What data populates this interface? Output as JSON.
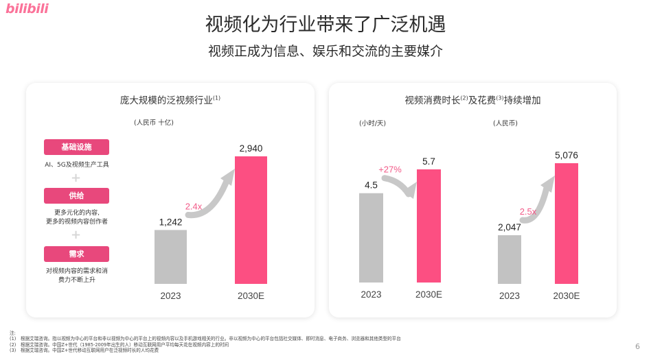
{
  "logo": "bilibili",
  "title": "视频化为行业带来了广泛机遇",
  "subtitle": "视频正成为信息、娱乐和交流的主要媒介",
  "colors": {
    "accent": "#fc4f82",
    "pill": "#e8487c",
    "gray": "#c2c2c2",
    "growth": "#f25a88",
    "arrow": "#c8c8c8"
  },
  "left_card": {
    "title": "庞大规模的泛视频行业",
    "title_note": "(1)",
    "unit": "(人民币 十亿)",
    "pillars": [
      {
        "label": "基础设施",
        "desc": "AI、5G及视频生产工具"
      },
      {
        "label": "供给",
        "desc": "更多元化的内容,\n更多的视频内容创作者"
      },
      {
        "label": "需求",
        "desc": "对视频内容的需求和消\n费力不断上升"
      }
    ],
    "plus": "+"
  },
  "right_card": {
    "title_part1": "视频消费时长",
    "note1": "(2)",
    "title_part2": "及花费",
    "note2": "(3)",
    "title_part3": "持续增加",
    "unit_time": "(小时/天)",
    "unit_spend": "(人民币)"
  },
  "chart_data": [
    {
      "type": "bar",
      "title": "庞大规模的泛视频行业",
      "ylabel": "(人民币 十亿)",
      "categories": [
        "2023",
        "2030E"
      ],
      "values": [
        1242,
        2940
      ],
      "labels": [
        "1,242",
        "2,940"
      ],
      "growth": "2.4x",
      "ylim": [
        0,
        3000
      ]
    },
    {
      "type": "bar",
      "title": "视频消费时长",
      "ylabel": "(小时/天)",
      "categories": [
        "2023",
        "2030E"
      ],
      "values": [
        4.5,
        5.7
      ],
      "labels": [
        "4.5",
        "5.7"
      ],
      "growth": "+27%",
      "ylim": [
        0,
        6
      ]
    },
    {
      "type": "bar",
      "title": "花费",
      "ylabel": "(人民币)",
      "categories": [
        "2023",
        "2030E"
      ],
      "values": [
        2047,
        5076
      ],
      "labels": [
        "2,047",
        "5,076"
      ],
      "growth": "2.5x",
      "ylim": [
        0,
        5100
      ]
    }
  ],
  "footnotes": {
    "heading": "注:",
    "items": [
      {
        "num": "(1)",
        "text": "根据艾瑞咨询。指以视频为中心的平台和非以视频为中心的平台上的视频内容以及手机游戏相关的行业。非以视频为中心的平台包括社交媒体、即时消息、电子商务、浏览器和其他类型的平台"
      },
      {
        "num": "(2)",
        "text": "根据艾瑞咨询。中国Z+世代（1985-2009年出生的人）移动互联网用户平均每天花在视频内容上的时间"
      },
      {
        "num": "(3)",
        "text": "根据艾瑞咨询。中国Z+世代移动互联网用户在泛视频时长的人均花费"
      }
    ]
  },
  "page_number": "6"
}
